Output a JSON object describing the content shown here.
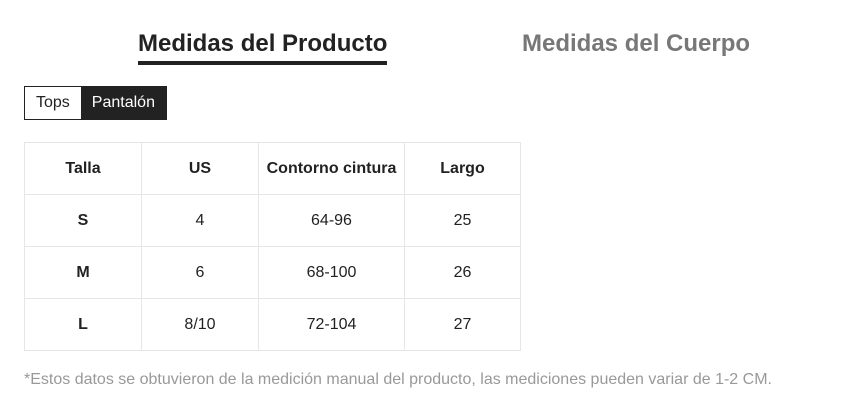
{
  "tabs": [
    {
      "label": "Medidas del Producto",
      "active": true
    },
    {
      "label": "Medidas del Cuerpo",
      "active": false
    }
  ],
  "categories": [
    {
      "label": "Tops",
      "active": false
    },
    {
      "label": "Pantalón",
      "active": true
    }
  ],
  "table": {
    "headers": [
      "Talla",
      "US",
      "Contorno cintura",
      "Largo"
    ],
    "rows": [
      [
        "S",
        "4",
        "64-96",
        "25"
      ],
      [
        "M",
        "6",
        "68-100",
        "26"
      ],
      [
        "L",
        "8/10",
        "72-104",
        "27"
      ]
    ]
  },
  "note": "*Estos datos se obtuvieron de la medición manual del producto, las mediciones pueden variar de 1-2 CM."
}
